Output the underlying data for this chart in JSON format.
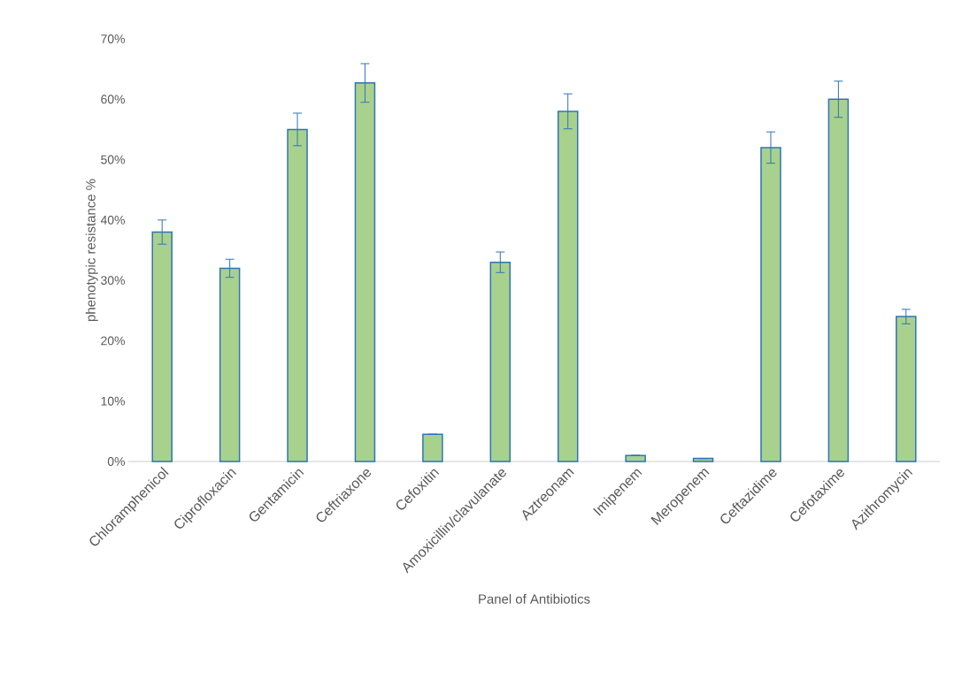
{
  "chart_data": {
    "type": "bar",
    "xlabel": "Panel of Antibiotics",
    "ylabel": "phenotypic resistance %",
    "categories": [
      "Chloramphenicol",
      "Ciprofloxacin",
      "Gentamicin",
      "Ceftriaxone",
      "Cefoxitin",
      "Amoxicillin/clavulanate",
      "Aztreonam",
      "Imipenem",
      "Meropenem",
      "Ceftazidime",
      "Cefotaxime",
      "Azithromycin"
    ],
    "values": [
      38,
      32,
      55,
      62.7,
      4.5,
      33,
      58,
      1,
      0.5,
      52,
      60,
      24
    ],
    "errors": [
      2,
      1.5,
      2.7,
      3.2,
      null,
      1.7,
      2.9,
      null,
      null,
      2.6,
      3,
      1.2
    ],
    "color": "#a9d18e",
    "ylim": [
      0,
      70
    ],
    "yticks": [
      {
        "value": 0,
        "label": "0%"
      },
      {
        "value": 10,
        "label": "10%"
      },
      {
        "value": 20,
        "label": "20%"
      },
      {
        "value": 30,
        "label": "30%"
      },
      {
        "value": 40,
        "label": "40%"
      },
      {
        "value": 50,
        "label": "50%"
      },
      {
        "value": 60,
        "label": "60%"
      },
      {
        "value": 70,
        "label": "70%"
      }
    ],
    "grid": false
  }
}
